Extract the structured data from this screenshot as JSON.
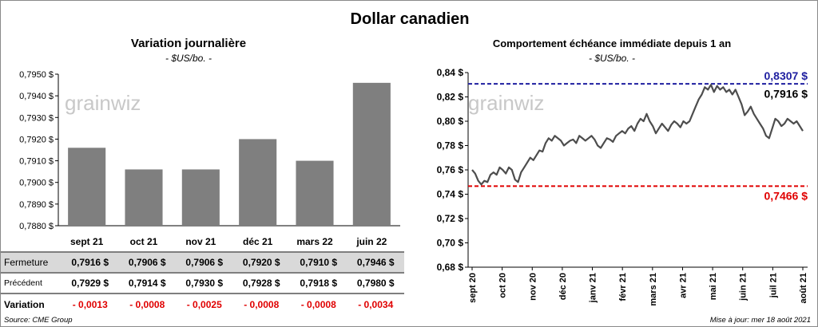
{
  "title": "Dollar canadien",
  "left_panel": {
    "title": "Variation  journalière",
    "unit": "- $US/bo. -",
    "watermark": "grainwiz"
  },
  "right_panel": {
    "title": "Comportement échéance immédiate depuis 1 an",
    "unit": "- $US/bo. -",
    "watermark": "grainwiz"
  },
  "table": {
    "rows": [
      {
        "label": "Fermeture",
        "values": [
          "0,7916  $",
          "0,7906  $",
          "0,7906  $",
          "0,7920  $",
          "0,7910  $",
          "0,7946  $"
        ]
      },
      {
        "label": "Précédent",
        "values": [
          "0,7929  $",
          "0,7914  $",
          "0,7930  $",
          "0,7928  $",
          "0,7918  $",
          "0,7980  $"
        ]
      },
      {
        "label": "Variation",
        "values": [
          "- 0,0013",
          "- 0,0008",
          "- 0,0025",
          "- 0,0008",
          "- 0,0008",
          "- 0,0034"
        ]
      }
    ]
  },
  "footer": {
    "source": "Source: CME Group",
    "updated": "Mise à jour: mer 18 août 2021"
  },
  "colors": {
    "bar": "#7f7f7f",
    "line": "#4d4d4d",
    "high_line": "#1f1fa0",
    "low_line": "#e00000",
    "negative": "#e00000"
  },
  "chart_data": [
    {
      "type": "bar",
      "categories": [
        "sept 21",
        "oct 21",
        "nov 21",
        "déc 21",
        "mars 22",
        "juin 22"
      ],
      "values": [
        0.7916,
        0.7906,
        0.7906,
        0.792,
        0.791,
        0.7946
      ],
      "ylim": [
        0.788,
        0.795
      ],
      "yticks": [
        0.788,
        0.789,
        0.79,
        0.791,
        0.792,
        0.793,
        0.794,
        0.795
      ],
      "ytick_labels": [
        "0,7880 $",
        "0,7890 $",
        "0,7900 $",
        "0,7910 $",
        "0,7920 $",
        "0,7930 $",
        "0,7940 $",
        "0,7950 $"
      ],
      "grid": false
    },
    {
      "type": "line",
      "x_labels": [
        "sept 20",
        "oct 20",
        "nov 20",
        "déc 20",
        "janv 21",
        "févr 21",
        "mars 21",
        "avr 21",
        "mai 21",
        "juin 21",
        "juil 21",
        "août 21"
      ],
      "ylim": [
        0.68,
        0.84
      ],
      "yticks": [
        0.68,
        0.7,
        0.72,
        0.74,
        0.76,
        0.78,
        0.8,
        0.82,
        0.84
      ],
      "ytick_labels": [
        "0,68 $",
        "0,70 $",
        "0,72 $",
        "0,74 $",
        "0,76 $",
        "0,78 $",
        "0,80 $",
        "0,82 $",
        "0,84 $"
      ],
      "series": [
        {
          "values": [
            0.76,
            0.757,
            0.751,
            0.748,
            0.751,
            0.75,
            0.756,
            0.758,
            0.756,
            0.762,
            0.76,
            0.757,
            0.762,
            0.76,
            0.752,
            0.75,
            0.758,
            0.762,
            0.766,
            0.77,
            0.768,
            0.772,
            0.776,
            0.775,
            0.782,
            0.786,
            0.784,
            0.788,
            0.786,
            0.784,
            0.78,
            0.782,
            0.784,
            0.785,
            0.782,
            0.788,
            0.786,
            0.784,
            0.786,
            0.788,
            0.785,
            0.78,
            0.778,
            0.782,
            0.786,
            0.785,
            0.783,
            0.788,
            0.79,
            0.792,
            0.79,
            0.794,
            0.796,
            0.792,
            0.798,
            0.802,
            0.8,
            0.806,
            0.8,
            0.796,
            0.79,
            0.794,
            0.798,
            0.795,
            0.792,
            0.797,
            0.8,
            0.798,
            0.795,
            0.8,
            0.798,
            0.8,
            0.806,
            0.812,
            0.818,
            0.822,
            0.828,
            0.826,
            0.83,
            0.824,
            0.829,
            0.826,
            0.828,
            0.824,
            0.826,
            0.822,
            0.826,
            0.82,
            0.814,
            0.805,
            0.808,
            0.812,
            0.806,
            0.802,
            0.798,
            0.794,
            0.788,
            0.786,
            0.794,
            0.802,
            0.8,
            0.796,
            0.798,
            0.802,
            0.8,
            0.798,
            0.8,
            0.796,
            0.792
          ]
        }
      ],
      "reference_lines": [
        {
          "value": 0.8307,
          "label": "0,8307 $"
        },
        {
          "value": 0.7466,
          "label": "0,7466 $"
        }
      ],
      "last_value_label": "0,7916 $",
      "grid": false
    }
  ]
}
